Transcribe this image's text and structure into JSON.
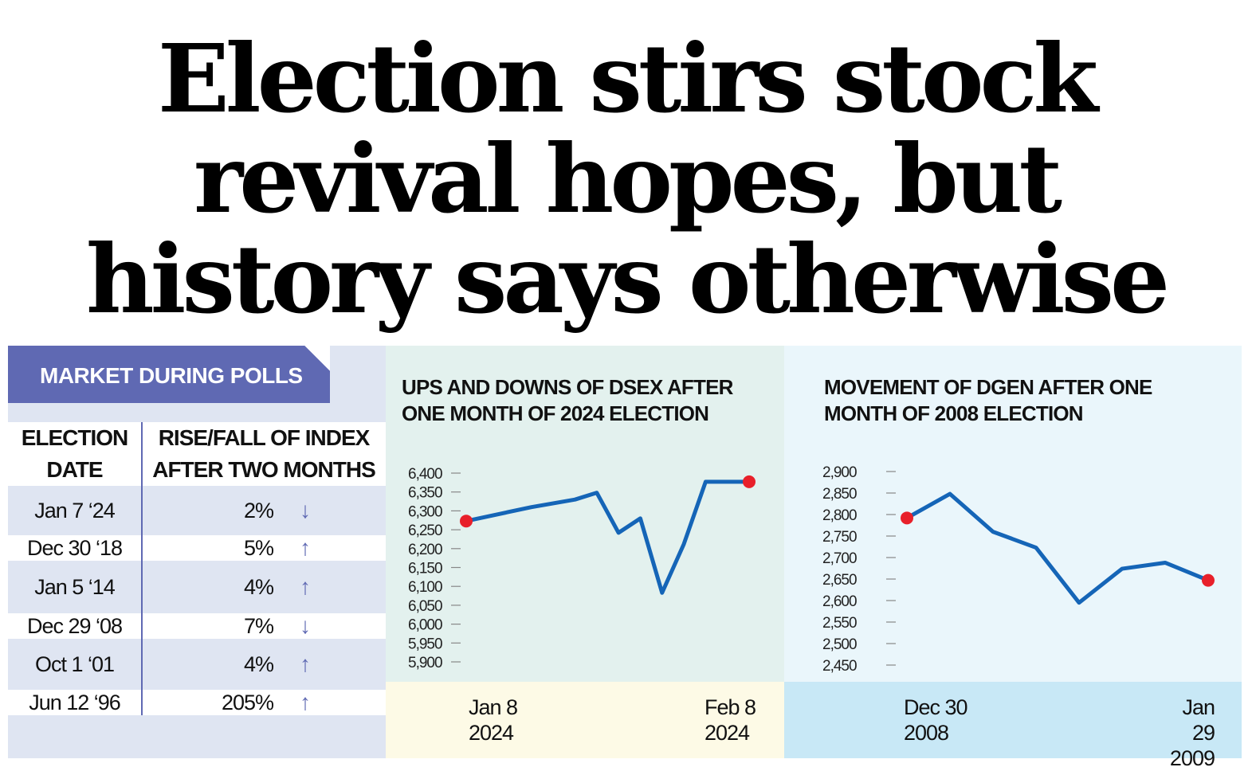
{
  "headline": {
    "line1": "Election stirs stock",
    "line2": "revival hopes, but",
    "line3": "history says otherwise"
  },
  "table": {
    "title": "MARKET DURING POLLS",
    "col1_line1": "ELECTION",
    "col1_line2": "DATE",
    "col2_line1": "RISE/FALL OF INDEX",
    "col2_line2": "AFTER TWO MONTHS",
    "rows": [
      {
        "date": "Jan 7 ‘24",
        "pct": "2%",
        "dir": "down",
        "arrow": "↓"
      },
      {
        "date": "Dec 30 ‘18",
        "pct": "5%",
        "dir": "up",
        "arrow": "↑"
      },
      {
        "date": "Jan 5 ‘14",
        "pct": "4%",
        "dir": "up",
        "arrow": "↑"
      },
      {
        "date": "Dec 29 ‘08",
        "pct": "7%",
        "dir": "down",
        "arrow": "↓"
      },
      {
        "date": "Oct 1 ‘01",
        "pct": "4%",
        "dir": "up",
        "arrow": "↑"
      },
      {
        "date": "Jun 12 ‘96",
        "pct": "205%",
        "dir": "up",
        "arrow": "↑"
      }
    ]
  },
  "chart_data": [
    {
      "type": "line",
      "title_line1": "UPS AND DOWNS OF DSEX AFTER",
      "title_line2": "ONE MONTH OF 2024 ELECTION",
      "x": [
        0,
        3,
        5,
        6,
        7,
        8,
        9,
        10,
        11,
        13
      ],
      "values": [
        6273,
        6310,
        6330,
        6348,
        6242,
        6280,
        6083,
        6212,
        6377,
        6377
      ],
      "y_ticks": [
        6400,
        6350,
        6300,
        6250,
        6200,
        6150,
        6100,
        6050,
        6000,
        5950,
        5900
      ],
      "y_tick_labels": [
        "6,400",
        "6,350",
        "6,300",
        "6,250",
        "6,200",
        "6,150",
        "6,100",
        "6,050",
        "6,000",
        "5,950",
        "5,900"
      ],
      "ylim": [
        5900,
        6400
      ],
      "start_label_line1": "Jan 8",
      "start_label_line2": "2024",
      "end_label_line1": "Feb 8",
      "end_label_line2": "2024",
      "line_color": "#1565b7",
      "marker_color": "#e8202a",
      "bg_color": "#e3f1ee",
      "foot_color": "#fdfae6"
    },
    {
      "type": "line",
      "title_line1": "MOVEMENT OF DGEN AFTER ONE",
      "title_line2": "MONTH OF 2008 ELECTION",
      "x": [
        0,
        1,
        2,
        3,
        4,
        5,
        6,
        7
      ],
      "values": [
        2792,
        2848,
        2760,
        2723,
        2595,
        2674,
        2688,
        2647
      ],
      "y_ticks": [
        2900,
        2850,
        2800,
        2750,
        2700,
        2650,
        2600,
        2550,
        2500,
        2450
      ],
      "y_tick_labels": [
        "2,900",
        "2,850",
        "2,800",
        "2,750",
        "2,700",
        "2,650",
        "2,600",
        "2,550",
        "2,500",
        "2,450"
      ],
      "ylim": [
        2450,
        2900
      ],
      "start_label_line1": "Dec 30",
      "start_label_line2": "2008",
      "end_label_line1": "Jan 29",
      "end_label_line2": "2009",
      "line_color": "#1565b7",
      "marker_color": "#e8202a",
      "bg_color": "#eaf6fb",
      "foot_color": "#c8e8f6"
    }
  ]
}
